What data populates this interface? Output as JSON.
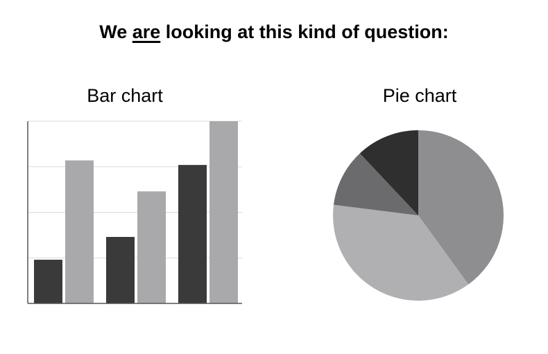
{
  "header": {
    "title_before": "We ",
    "title_emphasis": "are",
    "title_after": " looking at this kind of question:"
  },
  "chart_data": [
    {
      "type": "bar",
      "title": "Bar chart",
      "xlabel": "",
      "ylabel": "",
      "categories": [
        "",
        "",
        ""
      ],
      "ylim": [
        0,
        4
      ],
      "grid": true,
      "series": [
        {
          "values": [
            0.96,
            1.46,
            3.04
          ],
          "color": "#3a3a3a"
        },
        {
          "values": [
            3.14,
            2.46,
            4.0
          ],
          "color": "#a9a9ab"
        }
      ]
    },
    {
      "type": "pie",
      "title": "Pie chart",
      "slices": [
        {
          "value": 40,
          "color": "#8e8e91"
        },
        {
          "value": 37,
          "color": "#b0b0b2"
        },
        {
          "value": 11,
          "color": "#6b6b6e"
        },
        {
          "value": 12,
          "color": "#2f2f2f"
        }
      ]
    }
  ]
}
